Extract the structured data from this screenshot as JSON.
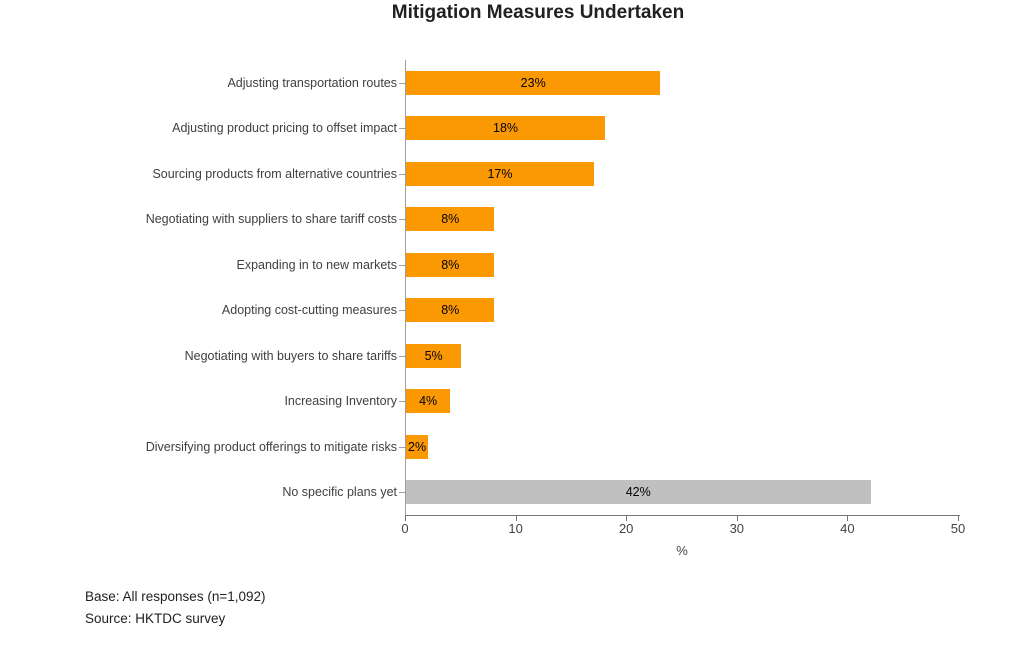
{
  "chart_data": {
    "type": "bar",
    "orientation": "horizontal",
    "title": "Mitigation Measures Undertaken",
    "categories": [
      "Adjusting transportation routes",
      "Adjusting product pricing to offset impact",
      "Sourcing products from alternative countries",
      "Negotiating with suppliers to share tariff costs",
      "Expanding in to new markets",
      "Adopting cost-cutting measures",
      "Negotiating with buyers to share tariffs",
      "Increasing Inventory",
      "Diversifying product offerings to mitigate risks",
      "No specific plans yet"
    ],
    "values": [
      23,
      18,
      17,
      8,
      8,
      8,
      5,
      4,
      2,
      42
    ],
    "data_labels": [
      "23%",
      "18%",
      "17%",
      "8%",
      "8%",
      "8%",
      "5%",
      "4%",
      "2%",
      "42%"
    ],
    "bar_colors": [
      "#FB9905",
      "#FB9905",
      "#FB9905",
      "#FB9905",
      "#FB9905",
      "#FB9905",
      "#FB9905",
      "#FB9905",
      "#FB9905",
      "#C0C0C0"
    ],
    "xlabel": "%",
    "xlim": [
      0,
      50
    ],
    "xticks": [
      0,
      10,
      20,
      30,
      40,
      50
    ],
    "grid": false,
    "legend": "none"
  },
  "footer": {
    "base": "Base: All responses (n=1,092)",
    "source": "Source: HKTDC survey"
  },
  "colors": {
    "bar_orange": "#FB9905",
    "bar_gray": "#C0C0C0",
    "x_axis_line": "#757575",
    "y_axis_line": "#9E9E9E",
    "label_text": "#404040",
    "title_text": "#212121"
  }
}
